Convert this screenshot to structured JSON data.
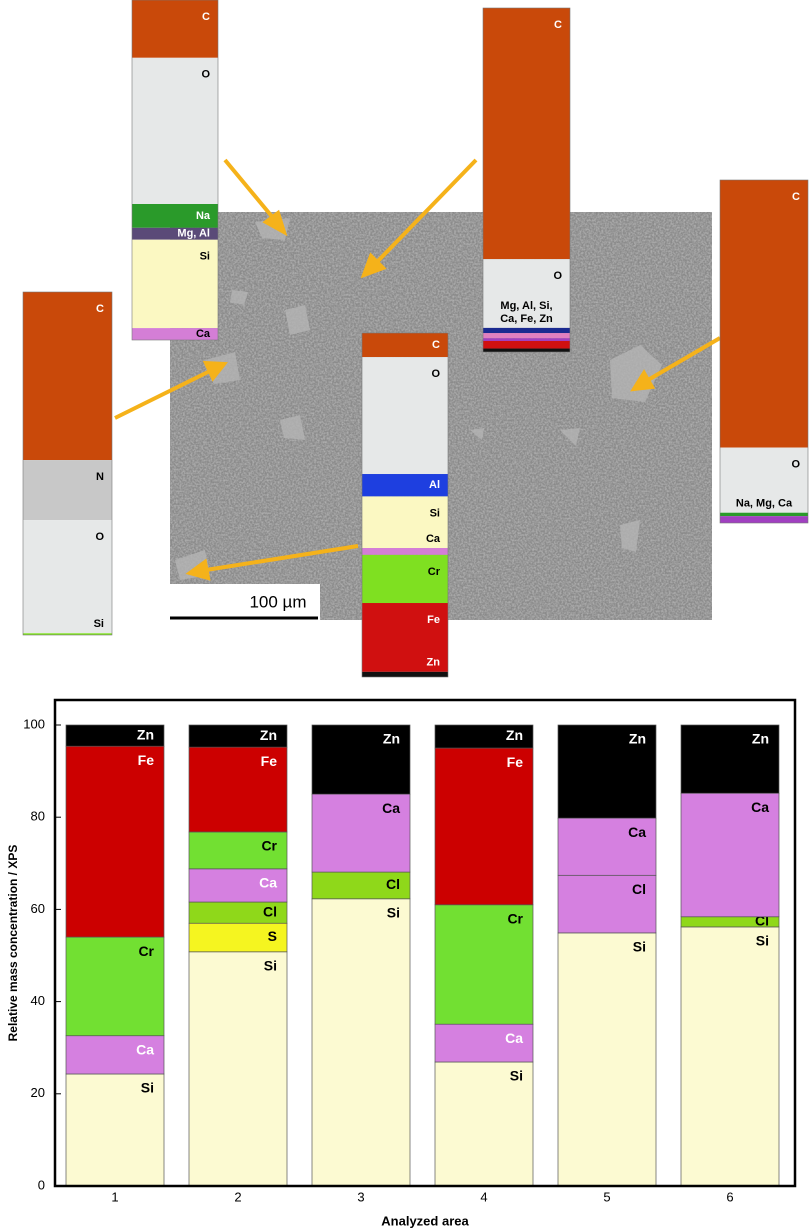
{
  "sem_figure": {
    "scale_bar": "100 µm",
    "insets": [
      {
        "segments": [
          {
            "name": "C",
            "value": 17,
            "color": "#c9490a"
          },
          {
            "name": "O",
            "value": 43,
            "color": "#e6e8e8"
          },
          {
            "name": "Na",
            "value": 7,
            "color": "#2a9a2a"
          },
          {
            "name": "Mg, Al",
            "value": 3.5,
            "color": "#5a4a78"
          },
          {
            "name": "Si",
            "value": 26,
            "color": "#fbf8c2"
          },
          {
            "name": "Ca",
            "value": 3.5,
            "color": "#d47ed6"
          }
        ]
      },
      {
        "segments": [
          {
            "name": "C",
            "value": 49,
            "color": "#c9490a"
          },
          {
            "name": "N",
            "value": 17.5,
            "color": "#c8c8c8"
          },
          {
            "name": "O",
            "value": 33,
            "color": "#e6e8e8"
          },
          {
            "name": "Si",
            "value": 0.5,
            "color": "#7fe021"
          }
        ]
      },
      {
        "segments": [
          {
            "name": "C",
            "value": 7,
            "color": "#c9490a"
          },
          {
            "name": "O",
            "value": 34,
            "color": "#e6e8e8"
          },
          {
            "name": "Al",
            "value": 6.5,
            "color": "#1e3fe0"
          },
          {
            "name": "Si",
            "value": 15,
            "color": "#fbf8c2"
          },
          {
            "name": "Ca",
            "value": 2,
            "color": "#d47ed6"
          },
          {
            "name": "Cr",
            "value": 14,
            "color": "#7fe021"
          },
          {
            "name": "Fe",
            "value": 20,
            "color": "#d01010"
          },
          {
            "name": "Zn",
            "value": 1.5,
            "color": "#111111"
          }
        ]
      },
      {
        "segments": [
          {
            "name": "C",
            "value": 73,
            "color": "#c9490a"
          },
          {
            "name": "O",
            "value": 20,
            "color": "#e6e8e8"
          },
          {
            "value": 1.5,
            "color": "#1a2a90"
          },
          {
            "value": 1.5,
            "color": "#e080c0"
          },
          {
            "value": 0.8,
            "color": "#a040c0"
          },
          {
            "value": 2.2,
            "color": "#d01010"
          },
          {
            "value": 1,
            "color": "#111111"
          }
        ],
        "group_label": [
          "Mg, Al, Si,",
          "Ca, Fe, Zn"
        ]
      },
      {
        "segments": [
          {
            "name": "C",
            "value": 78,
            "color": "#c9490a"
          },
          {
            "name": "O",
            "value": 19,
            "color": "#e6e8e8"
          },
          {
            "value": 1,
            "color": "#2a9a2a"
          },
          {
            "value": 2,
            "color": "#a040c0"
          }
        ],
        "group_label": [
          "Na, Mg, Ca"
        ]
      }
    ]
  },
  "chart_data": {
    "type": "stacked_bar",
    "categories": [
      "1",
      "2",
      "3",
      "4",
      "5",
      "6"
    ],
    "bars": [
      {
        "segments": [
          {
            "name": "Si",
            "value": 24.3,
            "color": "#fcfad2"
          },
          {
            "name": "Ca",
            "value": 8.3,
            "color": "#d580e0",
            "label_color": "#ffffff"
          },
          {
            "name": "Cr",
            "value": 21.4,
            "color": "#72e032"
          },
          {
            "name": "Fe",
            "value": 41.4,
            "color": "#cc0000"
          },
          {
            "name": "Zn",
            "value": 4.6,
            "color": "#000000"
          }
        ]
      },
      {
        "segments": [
          {
            "name": "Si",
            "value": 50.8,
            "color": "#fcfad2"
          },
          {
            "name": "S",
            "value": 6.2,
            "color": "#f5f520"
          },
          {
            "name": "Cl",
            "value": 4.6,
            "color": "#8fd81a"
          },
          {
            "name": "Ca",
            "value": 7.2,
            "color": "#d580e0",
            "label_color": "#ffffff"
          },
          {
            "name": "Cr",
            "value": 8.0,
            "color": "#72e032"
          },
          {
            "name": "Fe",
            "value": 18.4,
            "color": "#cc0000"
          },
          {
            "name": "Zn",
            "value": 4.8,
            "color": "#000000"
          }
        ]
      },
      {
        "segments": [
          {
            "name": "Si",
            "value": 62.3,
            "color": "#fcfad2"
          },
          {
            "name": "Cl",
            "value": 5.8,
            "color": "#8fd81a"
          },
          {
            "name": "Ca",
            "value": 16.9,
            "color": "#d580e0"
          },
          {
            "name": "Zn",
            "value": 15.0,
            "color": "#000000"
          }
        ]
      },
      {
        "segments": [
          {
            "name": "Si",
            "value": 26.9,
            "color": "#fcfad2"
          },
          {
            "name": "Ca",
            "value": 8.2,
            "color": "#d580e0",
            "label_color": "#ffffff"
          },
          {
            "name": "Cr",
            "value": 25.9,
            "color": "#72e032"
          },
          {
            "name": "Fe",
            "value": 34.0,
            "color": "#cc0000"
          },
          {
            "name": "Zn",
            "value": 5.0,
            "color": "#000000"
          }
        ]
      },
      {
        "segments": [
          {
            "name": "Si",
            "value": 54.9,
            "color": "#fcfad2"
          },
          {
            "name": "Cl",
            "value": 12.5,
            "color": "#d580e0"
          },
          {
            "name": "Ca",
            "value": 12.4,
            "color": "#d580e0"
          },
          {
            "name": "Zn",
            "value": 20.2,
            "color": "#000000"
          }
        ]
      },
      {
        "segments": [
          {
            "name": "Si",
            "value": 56.2,
            "color": "#fcfad2"
          },
          {
            "name": "Cl",
            "value": 2.2,
            "color": "#8fd81a"
          },
          {
            "name": "Ca",
            "value": 26.8,
            "color": "#d580e0"
          },
          {
            "name": "Zn",
            "value": 14.8,
            "color": "#000000"
          }
        ]
      }
    ],
    "ylim": [
      0,
      100
    ],
    "yticks": [
      0,
      20,
      40,
      60,
      80,
      100
    ],
    "xlabel": "Analyzed area",
    "ylabel": "Relative mass concentration / XPS"
  }
}
